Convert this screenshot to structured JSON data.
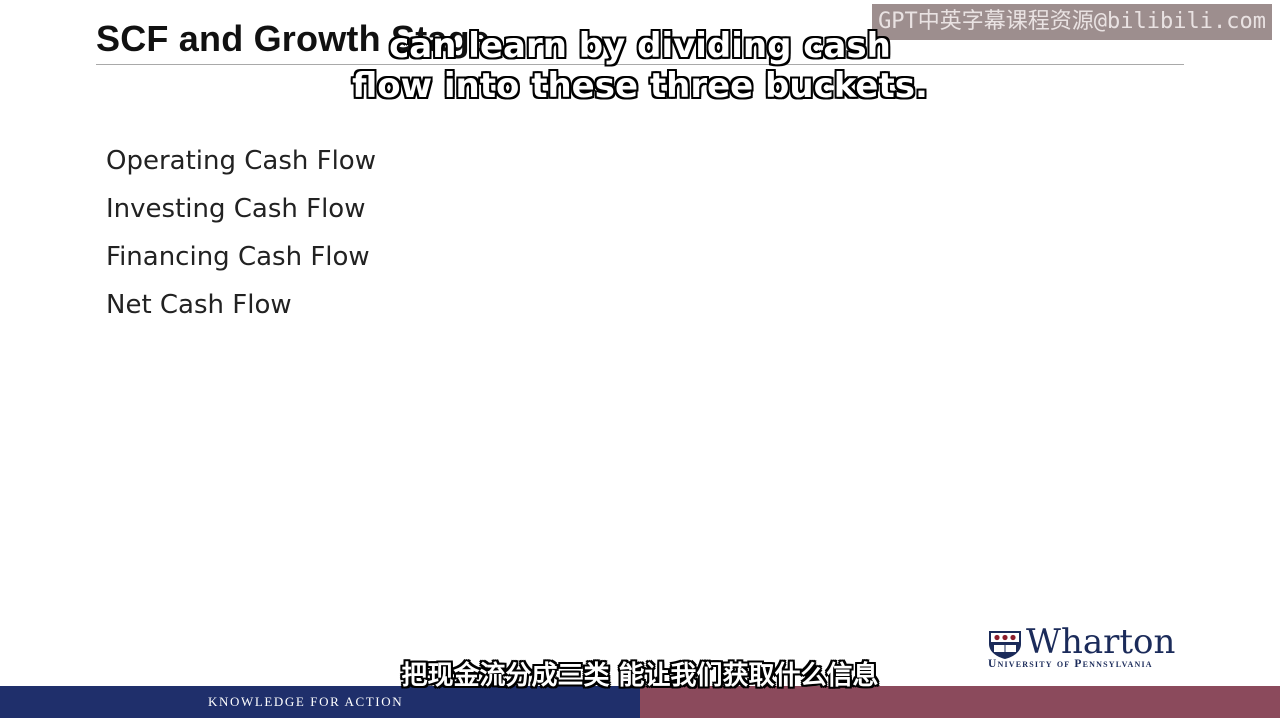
{
  "slide": {
    "title": "SCF and Growth Stage",
    "items": [
      "Operating Cash Flow",
      "Investing Cash Flow",
      "Financing Cash Flow",
      "Net Cash Flow"
    ]
  },
  "captions": {
    "english_line1": "can learn by dividing cash",
    "english_line2": "flow into these three buckets.",
    "chinese": "把现金流分成三类 能让我们获取什么信息"
  },
  "watermark": "GPT中英字幕课程资源@bilibili.com",
  "logo": {
    "name": "Wharton",
    "subtext": "University of Pennsylvania",
    "icon": "penn-shield-icon"
  },
  "footer": {
    "tagline": "KNOWLEDGE FOR ACTION"
  },
  "colors": {
    "footer_left": "#1f2f6b",
    "footer_right": "#8b4a5c",
    "logo_blue": "#1b2b5a"
  }
}
